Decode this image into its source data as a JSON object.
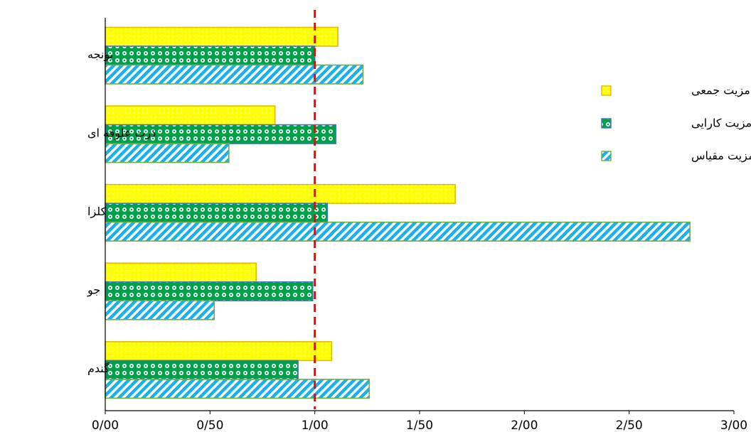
{
  "chart_data": {
    "type": "bar",
    "orientation": "horizontal",
    "categories": [
      "یونجه",
      "ذرت علوفه ای",
      "کلزا",
      "جو",
      "گندم"
    ],
    "series": [
      {
        "name": "مزیت جمعی",
        "values": [
          1.11,
          0.81,
          1.67,
          0.72,
          1.08
        ],
        "color": "#ffff00",
        "stroke": "#e6b800",
        "pattern": "dots"
      },
      {
        "name": "مزیت کارایی",
        "values": [
          1.0,
          1.1,
          1.06,
          0.99,
          0.92
        ],
        "color": "#00b050",
        "stroke": "#4472c4",
        "pattern": "circles"
      },
      {
        "name": "مزیت مقیاس",
        "values": [
          1.23,
          0.59,
          2.79,
          0.52,
          1.26
        ],
        "color": "#00b0f0",
        "stroke": "#70ad47",
        "pattern": "diagonal"
      }
    ],
    "xlim": [
      0,
      3
    ],
    "xticks": [
      "0/00",
      "0/50",
      "1/00",
      "1/50",
      "2/00",
      "2/50",
      "3/00"
    ],
    "reference_line": {
      "value": 1.0,
      "color": "#ff0000",
      "style": "dashed"
    },
    "legend_position": "right"
  }
}
